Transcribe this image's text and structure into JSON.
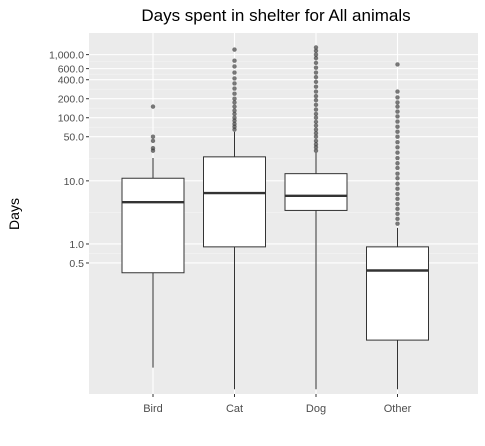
{
  "chart_data": {
    "type": "box",
    "title": "Days spent in shelter for All animals",
    "xlabel": "",
    "ylabel": "Days",
    "y_scale": "log10",
    "y_ticks": [
      0.5,
      1.0,
      10.0,
      50.0,
      100.0,
      200.0,
      400.0,
      600.0,
      1000.0
    ],
    "y_tick_labels": [
      "0.5",
      "1.0",
      "10.0",
      "50.0",
      "100.0",
      "200.0",
      "400.0",
      "600.0",
      "1,000.0"
    ],
    "ylim": [
      0.0042,
      2200
    ],
    "grid": true,
    "categories": [
      "Bird",
      "Cat",
      "Dog",
      "Other"
    ],
    "boxes": [
      {
        "category": "Bird",
        "whisker_low": 0.011,
        "q1": 0.35,
        "median": 4.6,
        "q3": 11.0,
        "whisker_high": 23.0,
        "outliers": [
          30,
          33,
          43,
          50,
          150
        ]
      },
      {
        "category": "Cat",
        "whisker_low": 0.005,
        "q1": 0.9,
        "median": 6.4,
        "q3": 24.0,
        "whisker_high": 60.0,
        "outliers": [
          65,
          72,
          80,
          90,
          100,
          115,
          130,
          150,
          175,
          200,
          240,
          290,
          350,
          420,
          520,
          650,
          800,
          1200
        ]
      },
      {
        "category": "Dog",
        "whisker_low": 0.005,
        "q1": 3.4,
        "median": 5.8,
        "q3": 13.0,
        "whisker_high": 28.0,
        "outliers": [
          30,
          34,
          38,
          43,
          50,
          57,
          65,
          75,
          86,
          100,
          115,
          135,
          160,
          190,
          220,
          260,
          310,
          370,
          440,
          520,
          620,
          740,
          880,
          1000,
          1150,
          1300
        ]
      },
      {
        "category": "Other",
        "whisker_low": 0.005,
        "q1": 0.03,
        "median": 0.38,
        "q3": 0.9,
        "whisker_high": 1.8,
        "outliers": [
          2.1,
          2.5,
          3.0,
          3.6,
          4.3,
          5.2,
          6.2,
          7.5,
          9.0,
          11,
          13,
          16,
          19,
          23,
          28,
          34,
          41,
          50,
          60,
          72,
          87,
          105,
          125,
          150,
          175,
          210,
          260,
          700
        ]
      }
    ]
  }
}
